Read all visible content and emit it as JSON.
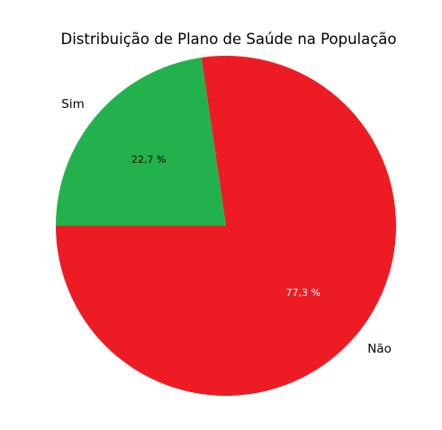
{
  "chart_data": {
    "type": "pie",
    "title": "Distribuição de Plano de Saúde na População",
    "categories": [
      "Sim",
      "Não"
    ],
    "values": [
      22.7,
      77.3
    ],
    "value_labels": [
      "22,7 %",
      "77,3 %"
    ],
    "colors": [
      "#22b14c",
      "#ed1c24"
    ],
    "value_label_colors": [
      "#000000",
      "#ffffff"
    ],
    "start_angle_deg": 180,
    "direction": "clockwise",
    "legend": "none"
  }
}
